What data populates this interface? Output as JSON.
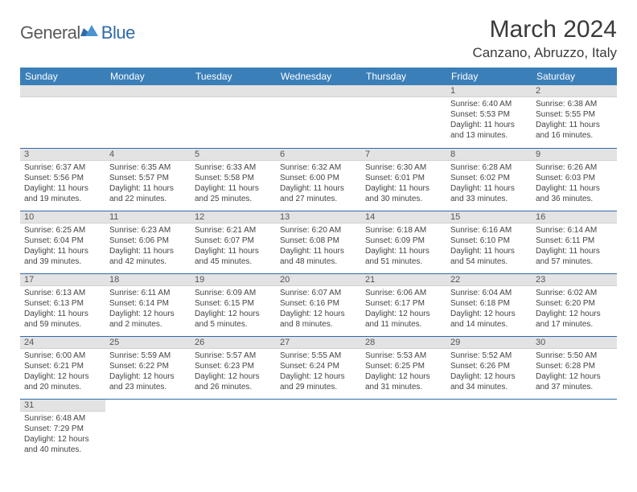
{
  "logo": {
    "part1": "General",
    "part2": "Blue"
  },
  "title": "March 2024",
  "location": "Canzano, Abruzzo, Italy",
  "header_bg": "#3b7fb8",
  "accent_color": "#2f6aa8",
  "daynum_bg": "#e3e3e3",
  "weekdays": [
    "Sunday",
    "Monday",
    "Tuesday",
    "Wednesday",
    "Thursday",
    "Friday",
    "Saturday"
  ],
  "weeks": [
    [
      null,
      null,
      null,
      null,
      null,
      {
        "n": "1",
        "sr": "6:40 AM",
        "ss": "5:53 PM",
        "dl": "11 hours and 13 minutes."
      },
      {
        "n": "2",
        "sr": "6:38 AM",
        "ss": "5:55 PM",
        "dl": "11 hours and 16 minutes."
      }
    ],
    [
      {
        "n": "3",
        "sr": "6:37 AM",
        "ss": "5:56 PM",
        "dl": "11 hours and 19 minutes."
      },
      {
        "n": "4",
        "sr": "6:35 AM",
        "ss": "5:57 PM",
        "dl": "11 hours and 22 minutes."
      },
      {
        "n": "5",
        "sr": "6:33 AM",
        "ss": "5:58 PM",
        "dl": "11 hours and 25 minutes."
      },
      {
        "n": "6",
        "sr": "6:32 AM",
        "ss": "6:00 PM",
        "dl": "11 hours and 27 minutes."
      },
      {
        "n": "7",
        "sr": "6:30 AM",
        "ss": "6:01 PM",
        "dl": "11 hours and 30 minutes."
      },
      {
        "n": "8",
        "sr": "6:28 AM",
        "ss": "6:02 PM",
        "dl": "11 hours and 33 minutes."
      },
      {
        "n": "9",
        "sr": "6:26 AM",
        "ss": "6:03 PM",
        "dl": "11 hours and 36 minutes."
      }
    ],
    [
      {
        "n": "10",
        "sr": "6:25 AM",
        "ss": "6:04 PM",
        "dl": "11 hours and 39 minutes."
      },
      {
        "n": "11",
        "sr": "6:23 AM",
        "ss": "6:06 PM",
        "dl": "11 hours and 42 minutes."
      },
      {
        "n": "12",
        "sr": "6:21 AM",
        "ss": "6:07 PM",
        "dl": "11 hours and 45 minutes."
      },
      {
        "n": "13",
        "sr": "6:20 AM",
        "ss": "6:08 PM",
        "dl": "11 hours and 48 minutes."
      },
      {
        "n": "14",
        "sr": "6:18 AM",
        "ss": "6:09 PM",
        "dl": "11 hours and 51 minutes."
      },
      {
        "n": "15",
        "sr": "6:16 AM",
        "ss": "6:10 PM",
        "dl": "11 hours and 54 minutes."
      },
      {
        "n": "16",
        "sr": "6:14 AM",
        "ss": "6:11 PM",
        "dl": "11 hours and 57 minutes."
      }
    ],
    [
      {
        "n": "17",
        "sr": "6:13 AM",
        "ss": "6:13 PM",
        "dl": "11 hours and 59 minutes."
      },
      {
        "n": "18",
        "sr": "6:11 AM",
        "ss": "6:14 PM",
        "dl": "12 hours and 2 minutes."
      },
      {
        "n": "19",
        "sr": "6:09 AM",
        "ss": "6:15 PM",
        "dl": "12 hours and 5 minutes."
      },
      {
        "n": "20",
        "sr": "6:07 AM",
        "ss": "6:16 PM",
        "dl": "12 hours and 8 minutes."
      },
      {
        "n": "21",
        "sr": "6:06 AM",
        "ss": "6:17 PM",
        "dl": "12 hours and 11 minutes."
      },
      {
        "n": "22",
        "sr": "6:04 AM",
        "ss": "6:18 PM",
        "dl": "12 hours and 14 minutes."
      },
      {
        "n": "23",
        "sr": "6:02 AM",
        "ss": "6:20 PM",
        "dl": "12 hours and 17 minutes."
      }
    ],
    [
      {
        "n": "24",
        "sr": "6:00 AM",
        "ss": "6:21 PM",
        "dl": "12 hours and 20 minutes."
      },
      {
        "n": "25",
        "sr": "5:59 AM",
        "ss": "6:22 PM",
        "dl": "12 hours and 23 minutes."
      },
      {
        "n": "26",
        "sr": "5:57 AM",
        "ss": "6:23 PM",
        "dl": "12 hours and 26 minutes."
      },
      {
        "n": "27",
        "sr": "5:55 AM",
        "ss": "6:24 PM",
        "dl": "12 hours and 29 minutes."
      },
      {
        "n": "28",
        "sr": "5:53 AM",
        "ss": "6:25 PM",
        "dl": "12 hours and 31 minutes."
      },
      {
        "n": "29",
        "sr": "5:52 AM",
        "ss": "6:26 PM",
        "dl": "12 hours and 34 minutes."
      },
      {
        "n": "30",
        "sr": "5:50 AM",
        "ss": "6:28 PM",
        "dl": "12 hours and 37 minutes."
      }
    ],
    [
      {
        "n": "31",
        "sr": "6:48 AM",
        "ss": "7:29 PM",
        "dl": "12 hours and 40 minutes."
      },
      null,
      null,
      null,
      null,
      null,
      null
    ]
  ],
  "labels": {
    "sunrise": "Sunrise:",
    "sunset": "Sunset:",
    "daylight": "Daylight:"
  }
}
